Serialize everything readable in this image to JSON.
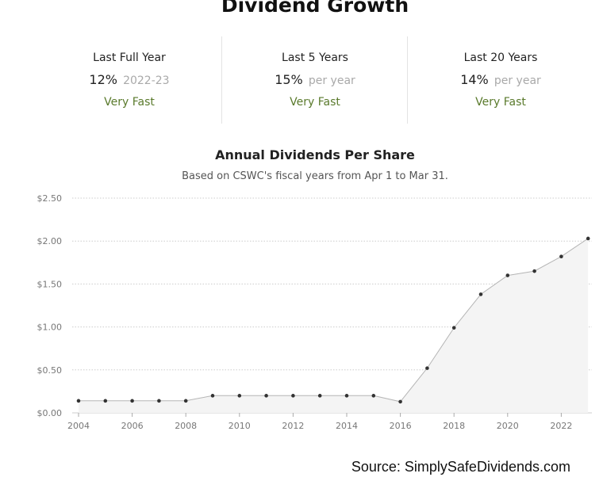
{
  "header": {
    "title": "Dividend Growth"
  },
  "stats": [
    {
      "label": "Last Full Year",
      "value": "12%",
      "sub": "2022-23",
      "rating": "Very Fast"
    },
    {
      "label": "Last 5 Years",
      "value": "15%",
      "sub": "per year",
      "rating": "Very Fast"
    },
    {
      "label": "Last 20 Years",
      "value": "14%",
      "sub": "per year",
      "rating": "Very Fast"
    }
  ],
  "colors": {
    "rating": "#5a7a2c",
    "line": "#b5b5b5",
    "area": "#f4f4f4",
    "point": "#333333",
    "grid": "#cccccc"
  },
  "source": "Source: SimplySafeDividends.com",
  "chart_data": {
    "type": "area",
    "title": "Annual Dividends Per Share",
    "subtitle": "Based on CSWC's fiscal years from Apr 1 to Mar 31.",
    "xlabel": "",
    "ylabel": "",
    "x": [
      2004,
      2005,
      2006,
      2007,
      2008,
      2009,
      2010,
      2011,
      2012,
      2013,
      2014,
      2015,
      2016,
      2017,
      2018,
      2019,
      2020,
      2021,
      2022,
      2023
    ],
    "values": [
      0.14,
      0.14,
      0.14,
      0.14,
      0.14,
      0.2,
      0.2,
      0.2,
      0.2,
      0.2,
      0.2,
      0.2,
      0.13,
      0.52,
      0.99,
      1.38,
      1.6,
      1.65,
      1.82,
      2.03
    ],
    "ylim": [
      0,
      2.5
    ],
    "yticks": [
      0,
      0.5,
      1.0,
      1.5,
      2.0,
      2.5
    ],
    "ytick_labels": [
      "$0.00",
      "$0.50",
      "$1.00",
      "$1.50",
      "$2.00",
      "$2.50"
    ],
    "xticks": [
      2004,
      2006,
      2008,
      2010,
      2012,
      2014,
      2016,
      2018,
      2020,
      2022
    ],
    "xtick_labels": [
      "2004",
      "2006",
      "2008",
      "2010",
      "2012",
      "2014",
      "2016",
      "2018",
      "2020",
      "2022"
    ],
    "grid": true,
    "legend": false
  }
}
